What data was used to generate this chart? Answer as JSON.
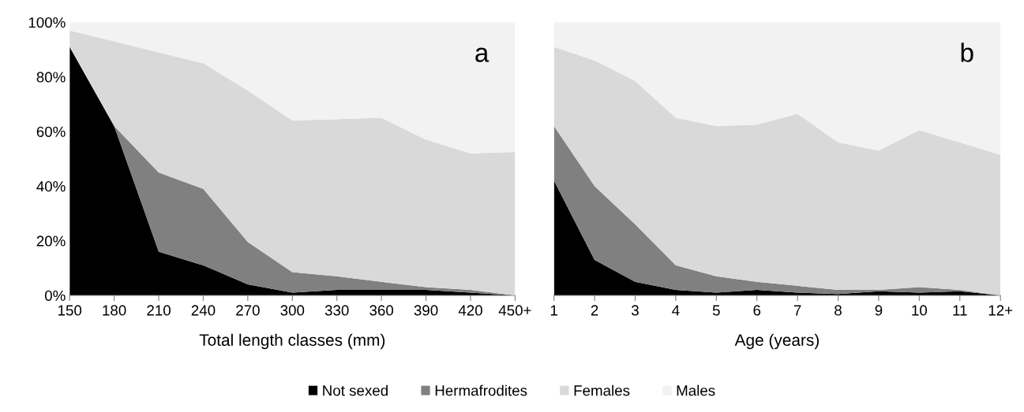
{
  "chart_data": [
    {
      "type": "area",
      "stacked": true,
      "xlabel": "Total length classes (mm)",
      "categories": [
        "150",
        "180",
        "210",
        "240",
        "270",
        "300",
        "330",
        "360",
        "390",
        "420",
        "450+"
      ],
      "series": [
        {
          "name": "Not sexed",
          "color": "#000000",
          "values": [
            91,
            62,
            16,
            11,
            4,
            1,
            2,
            2,
            2,
            1,
            0
          ]
        },
        {
          "name": "Hermafrodites",
          "color": "#808080",
          "values": [
            null,
            0,
            29,
            28,
            15.5,
            7.5,
            5,
            3,
            1,
            1,
            0
          ]
        },
        {
          "name": "Females",
          "color": "#d9d9d9",
          "values": [
            6,
            31,
            44,
            46,
            55.5,
            55.5,
            57.5,
            60,
            54,
            50,
            52.5
          ]
        },
        {
          "name": "Males",
          "color": "#f2f2f2",
          "values": [
            3,
            7,
            11,
            15,
            25,
            36,
            35.5,
            35,
            43,
            48,
            47.5
          ]
        }
      ],
      "ylim": [
        0,
        100
      ],
      "yticks": [
        {
          "value": 0,
          "label": "0%"
        },
        {
          "value": 20,
          "label": "20%"
        },
        {
          "value": 40,
          "label": "40%"
        },
        {
          "value": 60,
          "label": "60%"
        },
        {
          "value": 80,
          "label": "80%"
        },
        {
          "value": 100,
          "label": "100%"
        }
      ],
      "annotations": [
        "a"
      ],
      "legend": "bottom"
    },
    {
      "type": "area",
      "stacked": true,
      "xlabel": "Age (years)",
      "categories": [
        "1",
        "2",
        "3",
        "4",
        "5",
        "6",
        "7",
        "8",
        "9",
        "10",
        "11",
        "12+"
      ],
      "series": [
        {
          "name": "Not sexed",
          "color": "#000000",
          "values": [
            42,
            13,
            5,
            2,
            1,
            2,
            1,
            0.5,
            1.5,
            1,
            1.5,
            0
          ]
        },
        {
          "name": "Hermafrodites",
          "color": "#808080",
          "values": [
            20,
            27,
            21,
            9,
            6,
            3,
            2.5,
            1.5,
            0.5,
            2,
            0.5,
            0
          ]
        },
        {
          "name": "Females",
          "color": "#d9d9d9",
          "values": [
            29,
            46,
            52.5,
            54,
            55,
            57.5,
            63,
            54,
            51,
            57.5,
            54,
            51.5
          ]
        },
        {
          "name": "Males",
          "color": "#f2f2f2",
          "values": [
            9,
            14,
            21.5,
            35,
            38,
            37.5,
            33.5,
            44,
            47,
            39.5,
            44,
            48.5
          ]
        }
      ],
      "ylim": [
        0,
        100
      ],
      "tick_labels": "x",
      "annotations": [
        "b"
      ],
      "legend": "bottom"
    }
  ]
}
